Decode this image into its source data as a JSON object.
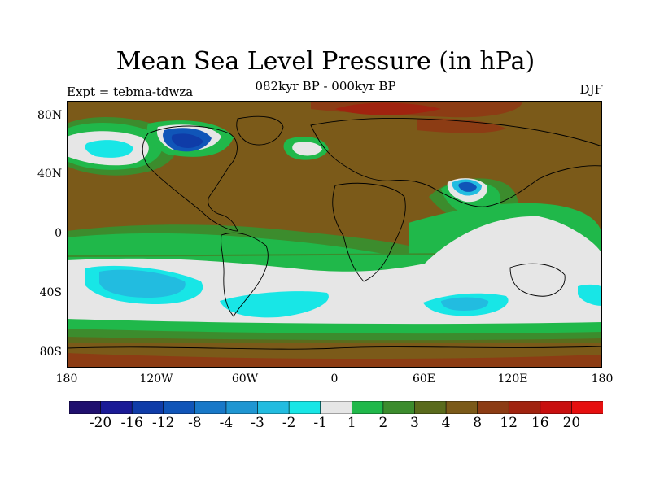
{
  "title": "Mean Sea Level Pressure (in hPa)",
  "subtitle": "082kyr BP - 000kyr BP",
  "left_label": "Expt = tebma-tdwza",
  "right_label": "DJF",
  "lat_ticks": [
    "80N",
    "40N",
    "0",
    "40S",
    "80S"
  ],
  "lon_ticks": [
    "180",
    "120W",
    "60W",
    "0",
    "60E",
    "120E",
    "180"
  ],
  "colorbar": {
    "labels": [
      "-20",
      "-16",
      "-12",
      "-8",
      "-4",
      "-3",
      "-2",
      "-1",
      "1",
      "2",
      "3",
      "4",
      "8",
      "12",
      "16",
      "20"
    ],
    "colors": [
      "#1f0f6e",
      "#1a1a96",
      "#0f3ca8",
      "#1055b8",
      "#1878c8",
      "#1f96d2",
      "#22bce0",
      "#18e6e6",
      "#e6e6e6",
      "#20b84a",
      "#3c8c2d",
      "#5a6b1c",
      "#7b5a19",
      "#8c3c14",
      "#a0230f",
      "#c80f0f",
      "#e60f0f"
    ]
  },
  "field_colors": {
    "base": "#7b5a19",
    "band4": "#5a6b1c",
    "band3": "#3c8c2d",
    "band2": "#20b84a",
    "band1": "#e6e6e6",
    "neg1": "#18e6e6",
    "neg2": "#22bce0",
    "neg3": "#1f96d2",
    "neg8": "#1055b8",
    "neg12": "#0f3ca8",
    "pos12": "#8c3c14",
    "pos16": "#a0230f"
  }
}
